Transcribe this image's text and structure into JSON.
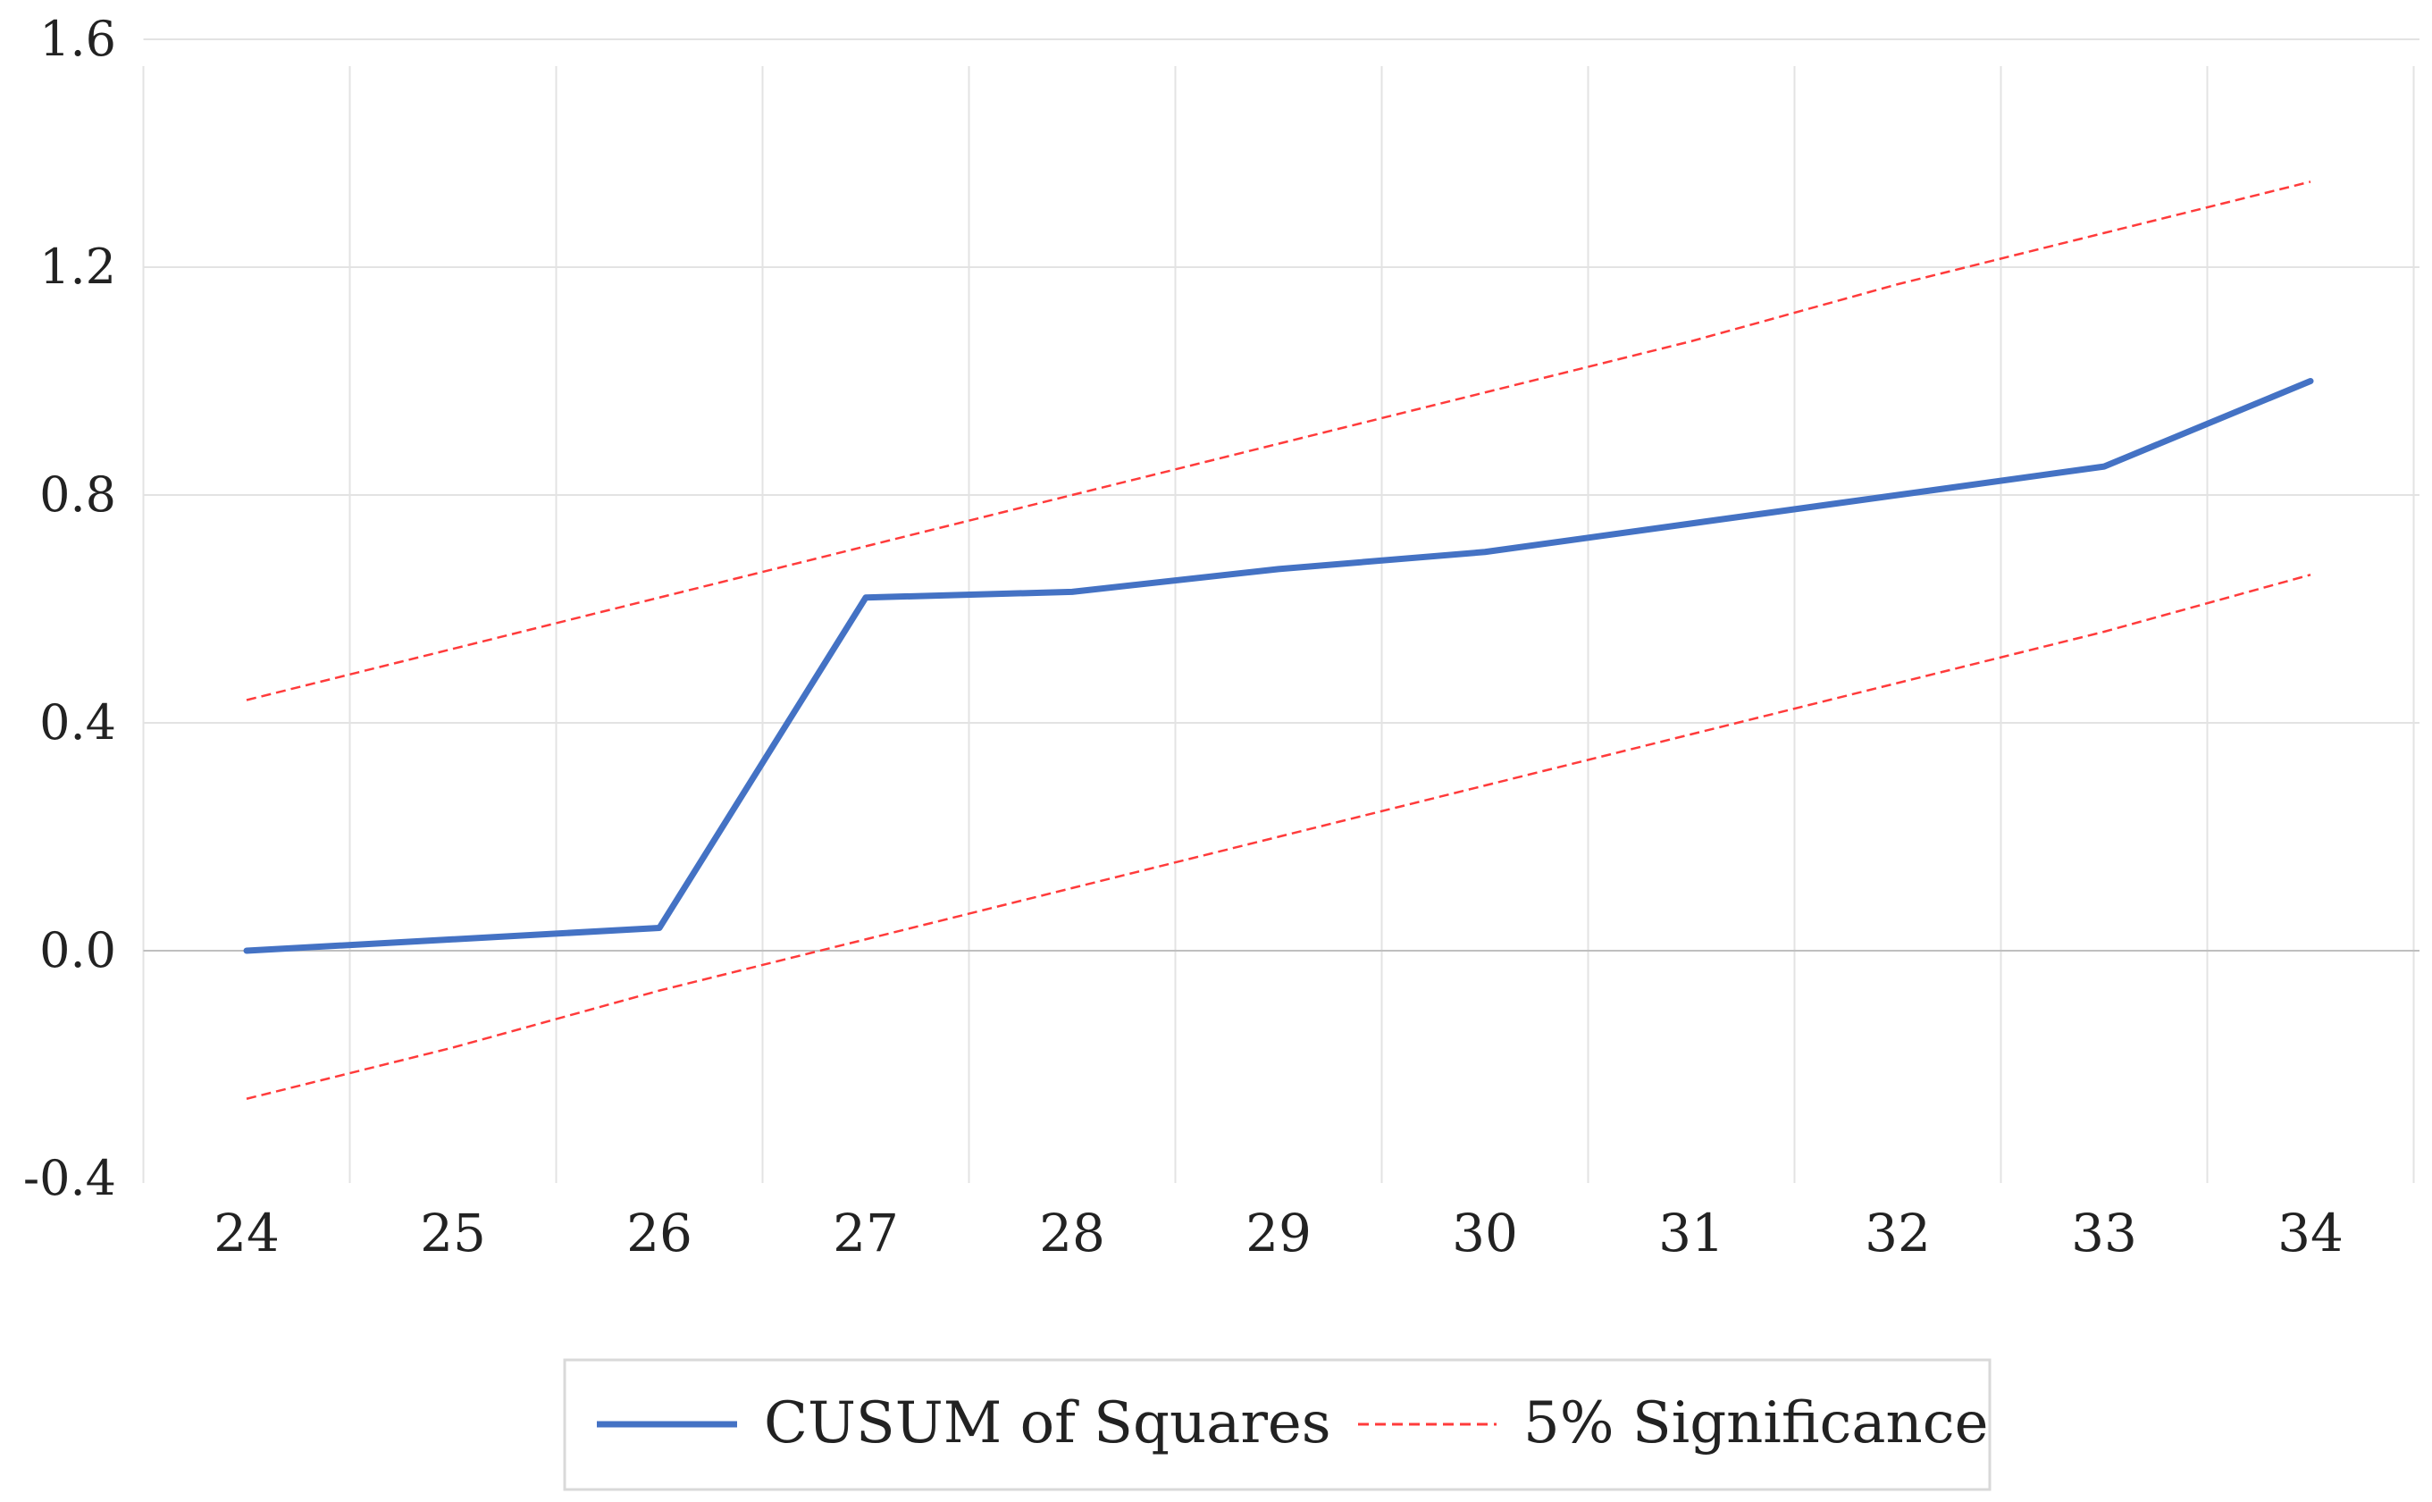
{
  "chart_data": {
    "type": "line",
    "title": "",
    "xlabel": "",
    "ylabel": "",
    "x": [
      24,
      25,
      26,
      27,
      28,
      29,
      30,
      31,
      32,
      33,
      34
    ],
    "x_tick_labels": [
      "24",
      "25",
      "26",
      "27",
      "28",
      "29",
      "30",
      "31",
      "32",
      "33",
      "34"
    ],
    "y_tick_values": [
      -0.4,
      0.0,
      0.4,
      0.8,
      1.2,
      1.6
    ],
    "y_tick_labels": [
      "-0.4",
      "0.0",
      "0.4",
      "0.8",
      "1.2",
      "1.6"
    ],
    "ylim": [
      -0.4,
      1.6
    ],
    "xlim": [
      23.5,
      34.5
    ],
    "grid": {
      "vertical": true,
      "horizontal": true
    },
    "legend_position": "bottom",
    "series": [
      {
        "name": "CUSUM of Squares",
        "style": "solid",
        "color": "#4472C4",
        "values": [
          0.0,
          0.02,
          0.04,
          0.62,
          0.63,
          0.67,
          0.7,
          0.75,
          0.8,
          0.85,
          1.0
        ]
      },
      {
        "name": "5% Significance",
        "style": "dashed",
        "color": "#FF3B3B",
        "values": [
          0.44,
          0.53,
          0.62,
          0.71,
          0.8,
          0.89,
          0.98,
          1.07,
          1.17,
          1.26,
          1.35
        ]
      },
      {
        "name": "",
        "style": "dashed",
        "color": "#FF3B3B",
        "values": [
          -0.26,
          -0.17,
          -0.07,
          0.02,
          0.11,
          0.2,
          0.29,
          0.38,
          0.47,
          0.56,
          0.66
        ]
      }
    ],
    "colors": {
      "gridline": "#E3E3E3",
      "zero_line": "#BFBFBF",
      "legend_border": "#D9D9D9"
    }
  }
}
